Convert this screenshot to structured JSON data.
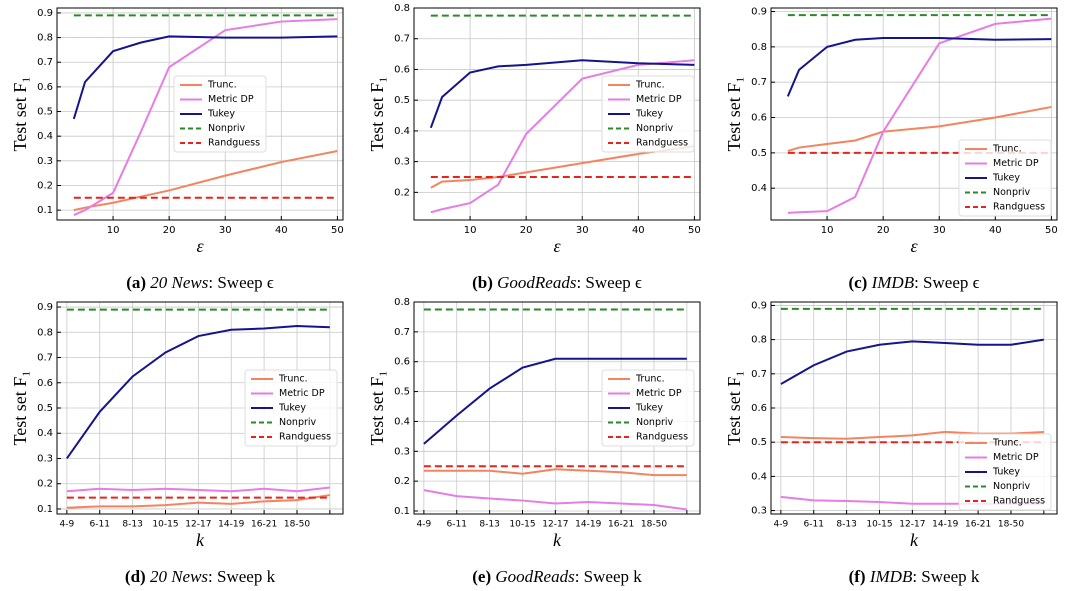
{
  "chart_data": [
    {
      "type": "line",
      "caption_label": "(a)",
      "caption_dataset": "20 News",
      "caption_rest": ": Sweep ϵ",
      "xlabel": "ε",
      "ylabel": "Test set F₁",
      "x": [
        3,
        5,
        10,
        15,
        20,
        30,
        40,
        50
      ],
      "xlim": [
        0,
        51
      ],
      "xticks": [
        10,
        20,
        30,
        40,
        50
      ],
      "ylim": [
        0.06,
        0.92
      ],
      "yticks": [
        0.1,
        0.2,
        0.3,
        0.4,
        0.5,
        0.6,
        0.7,
        0.8,
        0.9
      ],
      "grid": true,
      "legend": "center",
      "series": [
        {
          "name": "Trunc.",
          "color": "#f4845f",
          "linestyle": "solid",
          "values": [
            0.1,
            0.11,
            0.13,
            0.155,
            0.18,
            0.24,
            0.295,
            0.34
          ]
        },
        {
          "name": "Metric DP",
          "color": "#e67ce6",
          "linestyle": "solid",
          "values": [
            0.08,
            0.1,
            0.17,
            0.42,
            0.68,
            0.83,
            0.865,
            0.875
          ]
        },
        {
          "name": "Tukey",
          "color": "#14148c",
          "linestyle": "solid",
          "values": [
            0.47,
            0.62,
            0.745,
            0.78,
            0.805,
            0.8,
            0.8,
            0.805
          ]
        },
        {
          "name": "Nonpriv",
          "color": "#2a8a2a",
          "linestyle": "dashed",
          "values": [
            0.89,
            0.89,
            0.89,
            0.89,
            0.89,
            0.89,
            0.89,
            0.89
          ]
        },
        {
          "name": "Randguess",
          "color": "#e8231a",
          "linestyle": "dashed",
          "values": [
            0.15,
            0.15,
            0.15,
            0.15,
            0.15,
            0.15,
            0.15,
            0.15
          ]
        }
      ]
    },
    {
      "type": "line",
      "caption_label": "(b)",
      "caption_dataset": "GoodReads",
      "caption_rest": ": Sweep ϵ",
      "xlabel": "ε",
      "ylabel": "Test set F₁",
      "x": [
        3,
        5,
        10,
        15,
        20,
        30,
        40,
        50
      ],
      "xlim": [
        0,
        51
      ],
      "xticks": [
        10,
        20,
        30,
        40,
        50
      ],
      "ylim": [
        0.11,
        0.8
      ],
      "yticks": [
        0.2,
        0.3,
        0.4,
        0.5,
        0.6,
        0.7,
        0.8
      ],
      "grid": true,
      "legend": "center right",
      "series": [
        {
          "name": "Trunc.",
          "color": "#f4845f",
          "linestyle": "solid",
          "values": [
            0.215,
            0.235,
            0.24,
            0.25,
            0.265,
            0.295,
            0.325,
            0.35
          ]
        },
        {
          "name": "Metric DP",
          "color": "#e67ce6",
          "linestyle": "solid",
          "values": [
            0.135,
            0.145,
            0.165,
            0.225,
            0.39,
            0.57,
            0.615,
            0.63
          ]
        },
        {
          "name": "Tukey",
          "color": "#14148c",
          "linestyle": "solid",
          "values": [
            0.41,
            0.51,
            0.59,
            0.61,
            0.615,
            0.63,
            0.62,
            0.615
          ]
        },
        {
          "name": "Nonpriv",
          "color": "#2a8a2a",
          "linestyle": "dashed",
          "values": [
            0.775,
            0.775,
            0.775,
            0.775,
            0.775,
            0.775,
            0.775,
            0.775
          ]
        },
        {
          "name": "Randguess",
          "color": "#e8231a",
          "linestyle": "dashed",
          "values": [
            0.25,
            0.25,
            0.25,
            0.25,
            0.25,
            0.25,
            0.25,
            0.25
          ]
        }
      ]
    },
    {
      "type": "line",
      "caption_label": "(c)",
      "caption_dataset": "IMDB",
      "caption_rest": ": Sweep ϵ",
      "xlabel": "ε",
      "ylabel": "Test set F₁",
      "x": [
        3,
        5,
        10,
        15,
        20,
        30,
        40,
        50
      ],
      "xlim": [
        0,
        51
      ],
      "xticks": [
        10,
        20,
        30,
        40,
        50
      ],
      "ylim": [
        0.31,
        0.91
      ],
      "yticks": [
        0.4,
        0.5,
        0.6,
        0.7,
        0.8,
        0.9
      ],
      "grid": true,
      "legend": "lower right",
      "series": [
        {
          "name": "Trunc.",
          "color": "#f4845f",
          "linestyle": "solid",
          "values": [
            0.505,
            0.515,
            0.525,
            0.535,
            0.56,
            0.575,
            0.6,
            0.63
          ]
        },
        {
          "name": "Metric DP",
          "color": "#e67ce6",
          "linestyle": "solid",
          "values": [
            0.33,
            0.332,
            0.335,
            0.375,
            0.56,
            0.81,
            0.865,
            0.88
          ]
        },
        {
          "name": "Tukey",
          "color": "#14148c",
          "linestyle": "solid",
          "values": [
            0.66,
            0.735,
            0.8,
            0.82,
            0.825,
            0.825,
            0.82,
            0.822
          ]
        },
        {
          "name": "Nonpriv",
          "color": "#2a8a2a",
          "linestyle": "dashed",
          "values": [
            0.89,
            0.89,
            0.89,
            0.89,
            0.89,
            0.89,
            0.89,
            0.89
          ]
        },
        {
          "name": "Randguess",
          "color": "#e8231a",
          "linestyle": "dashed",
          "values": [
            0.5,
            0.5,
            0.5,
            0.5,
            0.5,
            0.5,
            0.5,
            0.5
          ]
        }
      ]
    },
    {
      "type": "line",
      "caption_label": "(d)",
      "caption_dataset": "20 News",
      "caption_rest": ": Sweep k",
      "xlabel": "k",
      "ylabel": "Test set F₁",
      "categories": [
        "4-9",
        "6-11",
        "8-13",
        "10-15",
        "12-17",
        "14-19",
        "16-21",
        "18-50",
        null
      ],
      "ylim": [
        0.08,
        0.92
      ],
      "yticks": [
        0.1,
        0.2,
        0.3,
        0.4,
        0.5,
        0.6,
        0.7,
        0.8,
        0.9
      ],
      "grid": true,
      "legend": "center right",
      "series": [
        {
          "name": "Trunc.",
          "color": "#f4845f",
          "linestyle": "solid",
          "values": [
            0.105,
            0.11,
            0.11,
            0.115,
            0.125,
            0.12,
            0.13,
            0.135,
            0.155
          ]
        },
        {
          "name": "Metric DP",
          "color": "#e67ce6",
          "linestyle": "solid",
          "values": [
            0.17,
            0.18,
            0.175,
            0.18,
            0.175,
            0.17,
            0.18,
            0.17,
            0.185
          ]
        },
        {
          "name": "Tukey",
          "color": "#14148c",
          "linestyle": "solid",
          "values": [
            0.3,
            0.485,
            0.625,
            0.72,
            0.785,
            0.81,
            0.815,
            0.825,
            0.82
          ]
        },
        {
          "name": "Nonpriv",
          "color": "#2a8a2a",
          "linestyle": "dashed",
          "values": [
            0.89,
            0.89,
            0.89,
            0.89,
            0.89,
            0.89,
            0.89,
            0.89,
            0.89
          ]
        },
        {
          "name": "Randguess",
          "color": "#e8231a",
          "linestyle": "dashed",
          "values": [
            0.145,
            0.145,
            0.145,
            0.145,
            0.145,
            0.145,
            0.145,
            0.145,
            0.145
          ]
        }
      ]
    },
    {
      "type": "line",
      "caption_label": "(e)",
      "caption_dataset": "GoodReads",
      "caption_rest": ": Sweep k",
      "xlabel": "k",
      "ylabel": "Test set F₁",
      "categories": [
        "4-9",
        "6-11",
        "8-13",
        "10-15",
        "12-17",
        "14-19",
        "16-21",
        "18-50",
        null
      ],
      "ylim": [
        0.09,
        0.8
      ],
      "yticks": [
        0.1,
        0.2,
        0.3,
        0.4,
        0.5,
        0.6,
        0.7,
        0.8
      ],
      "grid": true,
      "legend": "center right",
      "series": [
        {
          "name": "Trunc.",
          "color": "#f4845f",
          "linestyle": "solid",
          "values": [
            0.235,
            0.235,
            0.235,
            0.225,
            0.24,
            0.235,
            0.23,
            0.22,
            0.22
          ]
        },
        {
          "name": "Metric DP",
          "color": "#e67ce6",
          "linestyle": "solid",
          "values": [
            0.17,
            0.15,
            0.142,
            0.135,
            0.125,
            0.13,
            0.125,
            0.12,
            0.105
          ]
        },
        {
          "name": "Tukey",
          "color": "#14148c",
          "linestyle": "solid",
          "values": [
            0.325,
            0.42,
            0.51,
            0.58,
            0.61,
            0.61,
            0.61,
            0.61,
            0.61
          ]
        },
        {
          "name": "Nonpriv",
          "color": "#2a8a2a",
          "linestyle": "dashed",
          "values": [
            0.775,
            0.775,
            0.775,
            0.775,
            0.775,
            0.775,
            0.775,
            0.775,
            0.775
          ]
        },
        {
          "name": "Randguess",
          "color": "#e8231a",
          "linestyle": "dashed",
          "values": [
            0.25,
            0.25,
            0.25,
            0.25,
            0.25,
            0.25,
            0.25,
            0.25,
            0.25
          ]
        }
      ]
    },
    {
      "type": "line",
      "caption_label": "(f)",
      "caption_dataset": "IMDB",
      "caption_rest": ": Sweep k",
      "xlabel": "k",
      "ylabel": "Test set F₁",
      "categories": [
        "4-9",
        "6-11",
        "8-13",
        "10-15",
        "12-17",
        "14-19",
        "16-21",
        "18-50",
        null
      ],
      "ylim": [
        0.29,
        0.91
      ],
      "yticks": [
        0.3,
        0.4,
        0.5,
        0.6,
        0.7,
        0.8,
        0.9
      ],
      "grid": true,
      "legend": "lower right",
      "series": [
        {
          "name": "Trunc.",
          "color": "#f4845f",
          "linestyle": "solid",
          "values": [
            0.515,
            0.512,
            0.51,
            0.515,
            0.52,
            0.53,
            0.525,
            0.525,
            0.53
          ]
        },
        {
          "name": "Metric DP",
          "color": "#e67ce6",
          "linestyle": "solid",
          "values": [
            0.34,
            0.33,
            0.328,
            0.325,
            0.32,
            0.32,
            0.32,
            0.32,
            0.32
          ]
        },
        {
          "name": "Tukey",
          "color": "#14148c",
          "linestyle": "solid",
          "values": [
            0.67,
            0.725,
            0.765,
            0.785,
            0.795,
            0.79,
            0.785,
            0.785,
            0.8
          ]
        },
        {
          "name": "Nonpriv",
          "color": "#2a8a2a",
          "linestyle": "dashed",
          "values": [
            0.89,
            0.89,
            0.89,
            0.89,
            0.89,
            0.89,
            0.89,
            0.89,
            0.89
          ]
        },
        {
          "name": "Randguess",
          "color": "#e8231a",
          "linestyle": "dashed",
          "values": [
            0.5,
            0.5,
            0.5,
            0.5,
            0.5,
            0.5,
            0.5,
            0.5,
            0.5
          ]
        }
      ]
    }
  ]
}
